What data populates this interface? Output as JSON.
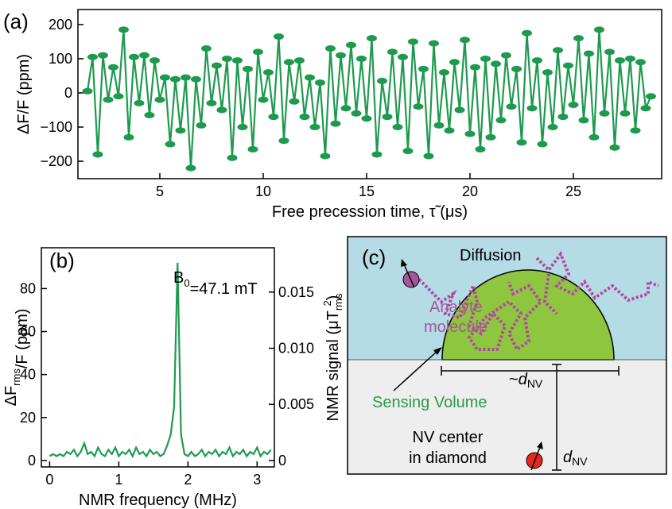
{
  "panel_labels": [
    "(a)",
    "(b)",
    "(c)"
  ],
  "chart_data": [
    {
      "type": "line",
      "marker": "ellipse",
      "color": "#1e9a4f",
      "xlabel": "Free precession time, τ̃ (μs)",
      "ylabel": [
        "ΔF/F (ppm)"
      ],
      "xlim": [
        1.04,
        29.27
      ],
      "ylim": [
        -251,
        244
      ],
      "xticks": [
        5,
        10,
        15,
        20,
        25
      ],
      "yticks": [
        {
          "value": -200,
          "label": "−200"
        },
        {
          "value": -100,
          "label": "−100"
        },
        0,
        100,
        200
      ],
      "x": [
        1.5,
        1.75,
        2,
        2.25,
        2.5,
        2.75,
        3,
        3.25,
        3.5,
        3.75,
        4,
        4.25,
        4.5,
        4.75,
        5,
        5.25,
        5.5,
        5.75,
        6,
        6.25,
        6.5,
        6.75,
        7,
        7.25,
        7.5,
        7.75,
        8,
        8.25,
        8.5,
        8.75,
        9,
        9.25,
        9.5,
        9.75,
        10,
        10.25,
        10.5,
        10.75,
        11,
        11.25,
        11.5,
        11.75,
        12,
        12.25,
        12.5,
        12.75,
        13,
        13.25,
        13.5,
        13.75,
        14,
        14.25,
        14.5,
        14.75,
        15,
        15.25,
        15.5,
        15.75,
        16,
        16.25,
        16.5,
        16.75,
        17,
        17.25,
        17.5,
        17.75,
        18,
        18.25,
        18.5,
        18.75,
        19,
        19.25,
        19.5,
        19.75,
        20,
        20.25,
        20.5,
        20.75,
        21,
        21.25,
        21.5,
        21.75,
        22,
        22.25,
        22.5,
        22.75,
        23,
        23.25,
        23.5,
        23.75,
        24,
        24.25,
        24.5,
        24.75,
        25,
        25.25,
        25.5,
        25.75,
        26,
        26.25,
        26.5,
        26.75,
        27,
        27.25,
        27.5,
        27.75,
        28,
        28.25,
        28.5,
        28.75
      ],
      "values": [
        5,
        105,
        -180,
        110,
        -20,
        75,
        -10,
        185,
        -130,
        105,
        -30,
        110,
        -65,
        95,
        -20,
        45,
        -150,
        40,
        -110,
        45,
        -220,
        40,
        -95,
        130,
        -30,
        80,
        -50,
        100,
        -190,
        95,
        -100,
        70,
        -165,
        120,
        -20,
        60,
        -70,
        165,
        -140,
        90,
        -25,
        95,
        -70,
        45,
        -100,
        30,
        -185,
        130,
        -90,
        110,
        -45,
        140,
        -60,
        100,
        -75,
        160,
        -180,
        35,
        -70,
        120,
        -100,
        105,
        -170,
        150,
        -40,
        70,
        -185,
        145,
        -95,
        60,
        -110,
        90,
        -50,
        155,
        -120,
        75,
        -165,
        100,
        -130,
        85,
        -80,
        110,
        -40,
        70,
        -145,
        175,
        -45,
        95,
        -150,
        60,
        -100,
        125,
        -70,
        80,
        -35,
        160,
        -80,
        115,
        -130,
        185,
        -60,
        120,
        -160,
        95,
        -60,
        100,
        -110,
        90,
        -45,
        -10
      ]
    },
    {
      "type": "line",
      "color": "#1e9a4f",
      "xlabel": "NMR frequency (MHz)",
      "ylabel": [
        "ΔF",
        "rms",
        "/F (ppm)"
      ],
      "y2label": [
        "NMR signal (μT",
        "rms",
        "2",
        ")"
      ],
      "annotation": [
        "B",
        "0",
        "=47.1 mT"
      ],
      "xlim": [
        -0.12,
        3.25
      ],
      "ylim": [
        -3,
        99
      ],
      "y2lim": [
        -0.00057,
        0.01895
      ],
      "xticks": [
        0,
        1,
        2,
        3
      ],
      "yticks": [
        0,
        20,
        40,
        60,
        80
      ],
      "y2ticks": [
        0,
        0.005,
        {
          "value": 0.01,
          "label": "0.010"
        },
        0.015
      ],
      "x": [
        0,
        0.05,
        0.1,
        0.15,
        0.2,
        0.25,
        0.3,
        0.35,
        0.4,
        0.45,
        0.5,
        0.55,
        0.6,
        0.65,
        0.7,
        0.75,
        0.8,
        0.85,
        0.9,
        0.95,
        1,
        1.05,
        1.1,
        1.15,
        1.2,
        1.25,
        1.3,
        1.35,
        1.4,
        1.45,
        1.5,
        1.55,
        1.6,
        1.65,
        1.7,
        1.75,
        1.8,
        1.85,
        1.9,
        1.95,
        2,
        2.05,
        2.1,
        2.15,
        2.2,
        2.25,
        2.3,
        2.35,
        2.4,
        2.45,
        2.5,
        2.55,
        2.6,
        2.65,
        2.7,
        2.75,
        2.8,
        2.85,
        2.9,
        2.95,
        3,
        3.05,
        3.1,
        3.15,
        3.2
      ],
      "values": [
        2,
        3,
        2,
        3,
        2,
        4,
        3,
        5,
        2,
        4,
        8,
        3,
        4,
        2,
        6,
        3,
        2,
        5,
        3,
        6,
        2,
        4,
        3,
        5,
        2,
        6,
        3,
        4,
        2,
        5,
        3,
        4,
        2,
        3,
        7,
        12,
        25,
        92,
        12,
        3,
        2,
        4,
        2,
        3,
        5,
        2,
        4,
        3,
        5,
        2,
        4,
        3,
        6,
        2,
        4,
        3,
        5,
        2,
        4,
        3,
        6,
        2,
        4,
        3,
        5
      ]
    }
  ],
  "diagram": {
    "diffusion": "Diffusion",
    "analyte": [
      "Analyte",
      "molecule"
    ],
    "width_label": [
      "~",
      "d",
      "NV"
    ],
    "sensing": "Sensing Volume",
    "nv": [
      "NV center",
      "in diamond"
    ],
    "depth_label": [
      "d",
      "NV"
    ]
  }
}
